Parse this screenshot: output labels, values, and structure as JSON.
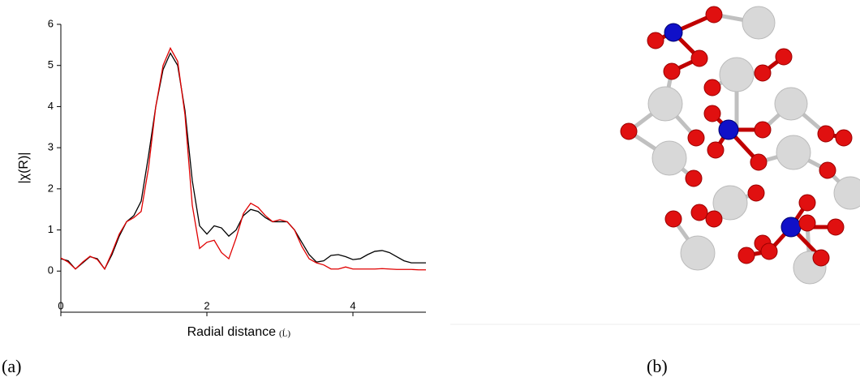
{
  "chart_data": {
    "type": "line",
    "ylabel": "|χ(R)|",
    "xlabel": "Radial distance",
    "xlabel_unit": "(Ĺ)",
    "x": [
      0,
      0.1,
      0.2,
      0.3,
      0.4,
      0.5,
      0.6,
      0.7,
      0.8,
      0.9,
      1.0,
      1.1,
      1.2,
      1.3,
      1.4,
      1.5,
      1.6,
      1.7,
      1.8,
      1.9,
      2.0,
      2.1,
      2.2,
      2.3,
      2.4,
      2.5,
      2.6,
      2.7,
      2.8,
      2.9,
      3.0,
      3.1,
      3.2,
      3.3,
      3.4,
      3.5,
      3.6,
      3.7,
      3.8,
      3.9,
      4.0,
      4.1,
      4.2,
      4.3,
      4.4,
      4.5,
      4.6,
      4.7,
      4.8,
      4.9,
      5.0
    ],
    "series": [
      {
        "color": "#000000",
        "values": [
          0.3,
          0.25,
          0.05,
          0.2,
          0.35,
          0.3,
          0.05,
          0.4,
          0.85,
          1.2,
          1.35,
          1.7,
          2.8,
          4.0,
          4.9,
          5.3,
          5.0,
          3.9,
          2.2,
          1.1,
          0.9,
          1.1,
          1.05,
          0.85,
          1.0,
          1.35,
          1.5,
          1.45,
          1.3,
          1.2,
          1.2,
          1.2,
          1.0,
          0.7,
          0.4,
          0.22,
          0.25,
          0.38,
          0.4,
          0.35,
          0.28,
          0.3,
          0.4,
          0.48,
          0.5,
          0.45,
          0.35,
          0.25,
          0.2,
          0.2,
          0.2
        ]
      },
      {
        "color": "#e00000",
        "values": [
          0.32,
          0.22,
          0.05,
          0.22,
          0.36,
          0.28,
          0.05,
          0.45,
          0.9,
          1.2,
          1.3,
          1.45,
          2.5,
          4.0,
          5.0,
          5.42,
          5.1,
          3.8,
          1.6,
          0.55,
          0.7,
          0.75,
          0.45,
          0.3,
          0.8,
          1.4,
          1.65,
          1.55,
          1.35,
          1.2,
          1.25,
          1.2,
          1.0,
          0.6,
          0.3,
          0.2,
          0.15,
          0.05,
          0.05,
          0.1,
          0.05,
          0.05,
          0.05,
          0.05,
          0.06,
          0.05,
          0.04,
          0.04,
          0.04,
          0.03,
          0.03
        ]
      }
    ],
    "xlim": [
      0,
      5
    ],
    "xticks": [
      0,
      2,
      4
    ],
    "ylim": [
      -1,
      6
    ],
    "yticks": [
      0,
      1,
      2,
      3,
      4,
      5,
      6
    ]
  },
  "panel_labels": [
    "(a)",
    "(b)"
  ]
}
